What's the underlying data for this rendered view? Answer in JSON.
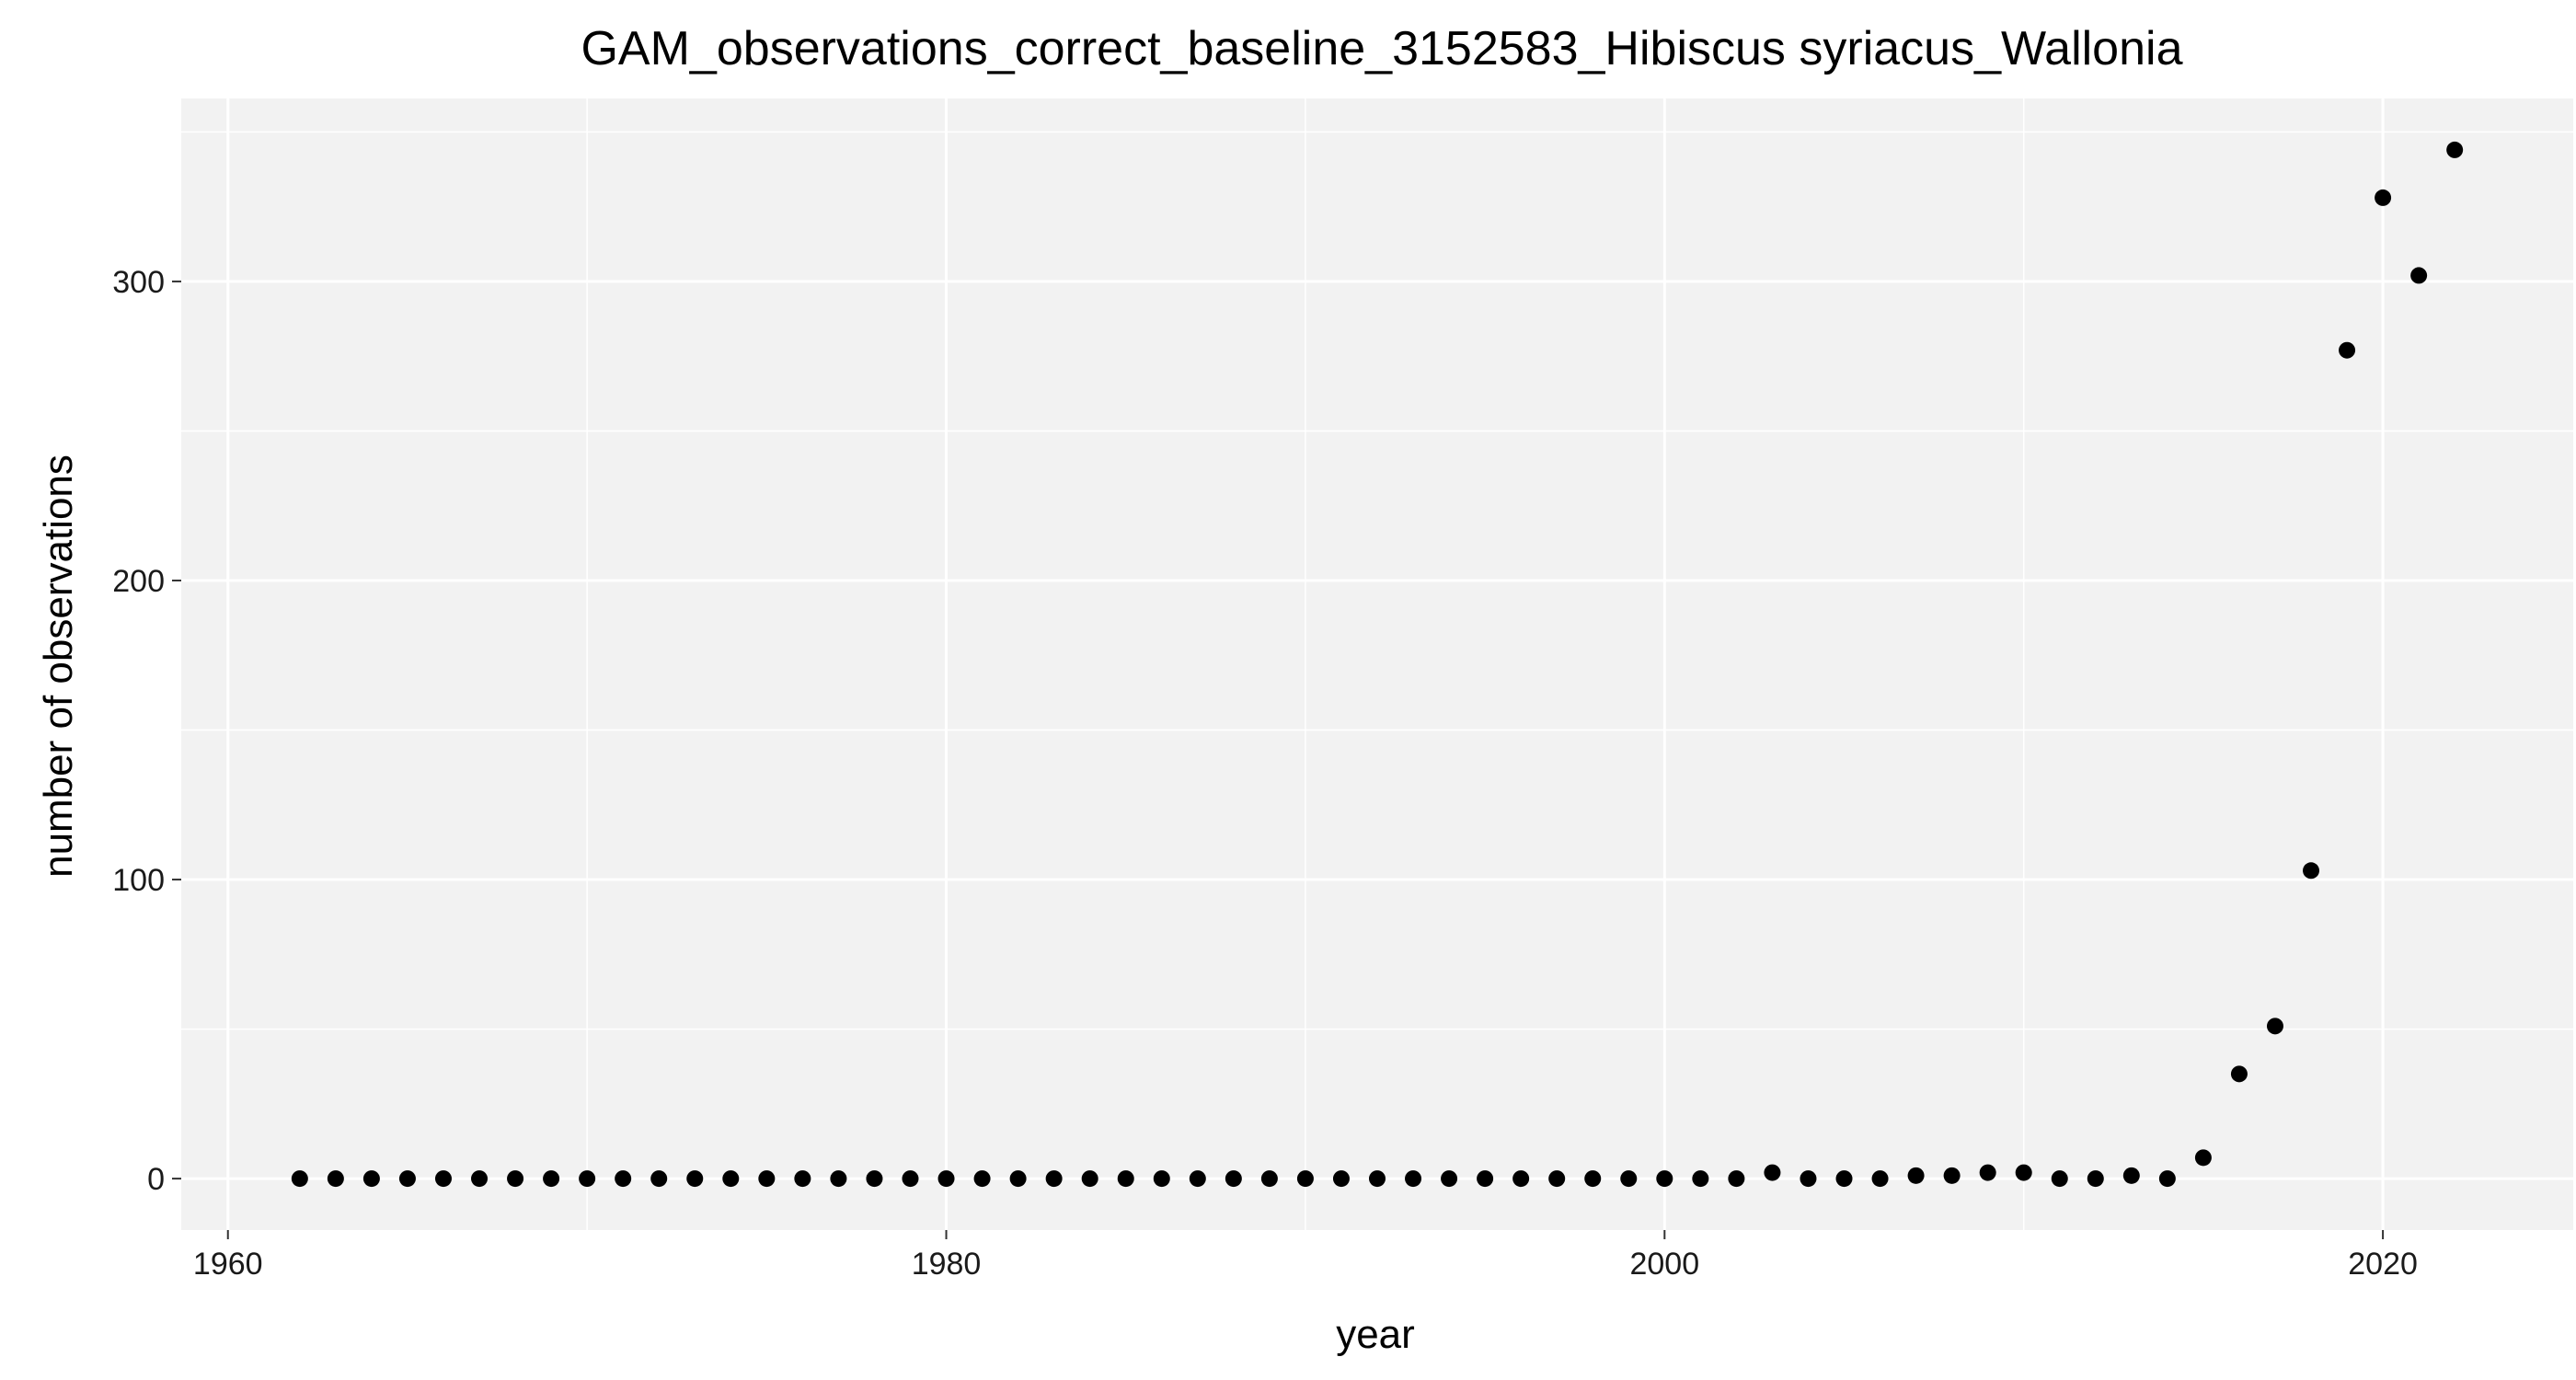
{
  "chart_data": {
    "type": "scatter",
    "title": "GAM_observations_correct_baseline_3152583_Hibiscus syriacus_Wallonia",
    "xlabel": "year",
    "ylabel": "number of observations",
    "xlim": [
      1958.7,
      2025.3
    ],
    "ylim": [
      -17.2,
      361.2
    ],
    "x_ticks": [
      1960,
      1980,
      2000,
      2020
    ],
    "y_ticks": [
      0,
      100,
      200,
      300
    ],
    "x_minor_ticks": [
      1970,
      1990,
      2010
    ],
    "y_minor_ticks": [
      50,
      150,
      250,
      350
    ],
    "grid": true,
    "background": "#f2f2f2",
    "grid_color": "#ffffff",
    "point_color": "#000000",
    "series": [
      {
        "x": [
          1962,
          1963,
          1964,
          1965,
          1966,
          1967,
          1968,
          1969,
          1970,
          1971,
          1972,
          1973,
          1974,
          1975,
          1976,
          1977,
          1978,
          1979,
          1980,
          1981,
          1982,
          1983,
          1984,
          1985,
          1986,
          1987,
          1988,
          1989,
          1990,
          1991,
          1992,
          1993,
          1994,
          1995,
          1996,
          1997,
          1998,
          1999,
          2000,
          2001,
          2002,
          2003,
          2004,
          2005,
          2006,
          2007,
          2008,
          2009,
          2010,
          2011,
          2012,
          2013,
          2014,
          2015,
          2016,
          2017,
          2018,
          2019,
          2020,
          2021,
          2022
        ],
        "y": [
          0,
          0,
          0,
          0,
          0,
          0,
          0,
          0,
          0,
          0,
          0,
          0,
          0,
          0,
          0,
          0,
          0,
          0,
          0,
          0,
          0,
          0,
          0,
          0,
          0,
          0,
          0,
          0,
          0,
          0,
          0,
          0,
          0,
          0,
          0,
          0,
          0,
          0,
          0,
          0,
          0,
          2,
          0,
          0,
          0,
          1,
          1,
          2,
          2,
          0,
          0,
          1,
          0,
          7,
          35,
          51,
          103,
          277,
          328,
          302,
          344
        ]
      }
    ]
  }
}
